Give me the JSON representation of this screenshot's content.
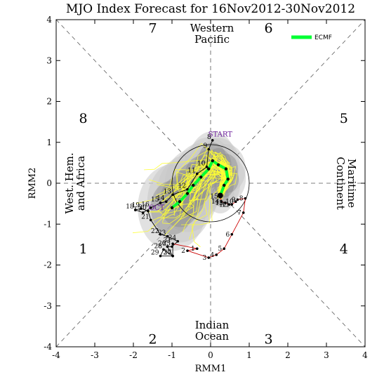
{
  "chart_data": {
    "type": "scatter",
    "title": "MJO Index Forecast for 16Nov2012-30Nov2012",
    "xlabel": "RMM1",
    "ylabel": "RMM2",
    "xlim": [
      -4,
      4
    ],
    "ylim": [
      -4,
      4
    ],
    "x_ticks": [
      "-4",
      "-3",
      "-2",
      "-1",
      "0",
      "1",
      "2",
      "3",
      "4"
    ],
    "y_ticks": [
      "-4",
      "-3",
      "-2",
      "-1",
      "0",
      "1",
      "2",
      "3",
      "4"
    ],
    "unit_circle_radius": 1,
    "phases": [
      {
        "label": "1",
        "x": -3.3,
        "y": -1.6
      },
      {
        "label": "2",
        "x": -1.5,
        "y": -3.8
      },
      {
        "label": "3",
        "x": 1.5,
        "y": -3.8
      },
      {
        "label": "4",
        "x": 3.45,
        "y": -1.6
      },
      {
        "label": "5",
        "x": 3.45,
        "y": 1.6
      },
      {
        "label": "6",
        "x": 1.5,
        "y": 3.8
      },
      {
        "label": "7",
        "x": -1.5,
        "y": 3.8
      },
      {
        "label": "8",
        "x": -3.3,
        "y": 1.6
      }
    ],
    "regions": {
      "top": [
        "Western",
        "Pacific"
      ],
      "bottom": [
        "Indian",
        "Ocean"
      ],
      "left": [
        "West. Hem.",
        "and Africa"
      ],
      "right": [
        "Maritime",
        "Continent"
      ]
    },
    "legend": [
      {
        "name": "ECMF",
        "color": "#00ff33"
      }
    ],
    "annotations": [
      {
        "text": "START",
        "x": 0.25,
        "y": 1.14
      },
      {
        "text": "OCT",
        "x": -1.4,
        "y": -0.65
      }
    ],
    "observed_oct": {
      "color": "#000000",
      "points": [
        {
          "day": "8",
          "x": 0.05,
          "y": 1.05
        },
        {
          "day": "9",
          "x": -0.05,
          "y": 0.83
        },
        {
          "day": "10",
          "x": -0.1,
          "y": 0.4
        },
        {
          "day": "11",
          "x": -0.35,
          "y": 0.23
        },
        {
          "day": "12",
          "x": -0.6,
          "y": -0.15
        },
        {
          "day": "13",
          "x": -0.98,
          "y": -0.28
        },
        {
          "day": "14",
          "x": -1.15,
          "y": -0.45
        },
        {
          "day": "15",
          "x": -1.3,
          "y": -0.48
        },
        {
          "day": "16",
          "x": -1.55,
          "y": -0.6
        },
        {
          "day": "17",
          "x": -1.75,
          "y": -0.72
        },
        {
          "day": "18",
          "x": -1.95,
          "y": -0.65
        },
        {
          "day": "19",
          "x": -1.8,
          "y": -0.62
        },
        {
          "day": "20",
          "x": -1.62,
          "y": -0.68
        },
        {
          "day": "21",
          "x": -1.55,
          "y": -0.9
        },
        {
          "day": "22",
          "x": -1.3,
          "y": -1.25
        },
        {
          "day": "23",
          "x": -1.12,
          "y": -1.3
        },
        {
          "day": "24",
          "x": -0.85,
          "y": -1.42
        },
        {
          "day": "25",
          "x": -1.0,
          "y": -1.55
        },
        {
          "day": "26",
          "x": -1.12,
          "y": -1.55
        },
        {
          "day": "27",
          "x": -0.98,
          "y": -1.78
        },
        {
          "day": "28",
          "x": -1.22,
          "y": -1.62
        },
        {
          "day": "29",
          "x": -1.3,
          "y": -1.78
        },
        {
          "day": "30",
          "x": -0.98,
          "y": -1.78
        },
        {
          "day": "31",
          "x": -0.98,
          "y": -1.48
        }
      ]
    },
    "observed_nov": {
      "color": "#cc0000",
      "points": [
        {
          "day": "1",
          "x": -0.35,
          "y": -1.6
        },
        {
          "day": "2",
          "x": -0.6,
          "y": -1.65
        },
        {
          "day": "3",
          "x": -0.05,
          "y": -1.82
        },
        {
          "day": "4",
          "x": 0.15,
          "y": -1.75
        },
        {
          "day": "5",
          "x": 0.35,
          "y": -1.6
        },
        {
          "day": "6",
          "x": 0.55,
          "y": -1.25
        },
        {
          "day": "7",
          "x": 0.85,
          "y": -0.72
        },
        {
          "day": "8",
          "x": 0.9,
          "y": -0.37
        },
        {
          "day": "9",
          "x": 0.7,
          "y": -0.4
        },
        {
          "day": "10",
          "x": 0.65,
          "y": -0.45
        },
        {
          "day": "11",
          "x": 0.55,
          "y": -0.52
        },
        {
          "day": "12",
          "x": 0.48,
          "y": -0.52
        },
        {
          "day": "13",
          "x": 0.38,
          "y": -0.48
        },
        {
          "day": "14",
          "x": 0.28,
          "y": -0.45
        },
        {
          "day": "15",
          "x": 0.25,
          "y": -0.32
        }
      ]
    },
    "forecast_ecmf": {
      "name": "ECMF",
      "color": "#00ff33",
      "points": [
        {
          "x": 0.25,
          "y": -0.3
        },
        {
          "x": 0.35,
          "y": -0.05
        },
        {
          "x": 0.45,
          "y": 0.1
        },
        {
          "x": 0.4,
          "y": 0.35
        },
        {
          "x": 0.2,
          "y": 0.45
        },
        {
          "x": 0.05,
          "y": 0.55
        },
        {
          "x": -0.05,
          "y": 0.35
        },
        {
          "x": -0.25,
          "y": 0.15
        },
        {
          "x": -0.45,
          "y": -0.05
        },
        {
          "x": -0.6,
          "y": -0.25
        },
        {
          "x": -0.8,
          "y": -0.45
        },
        {
          "x": -1.0,
          "y": -0.6
        }
      ]
    },
    "ensemble_color": "#ffff33",
    "spread_outer_color": "#c8c8c8",
    "spread_inner_color": "#8c8c8c"
  }
}
